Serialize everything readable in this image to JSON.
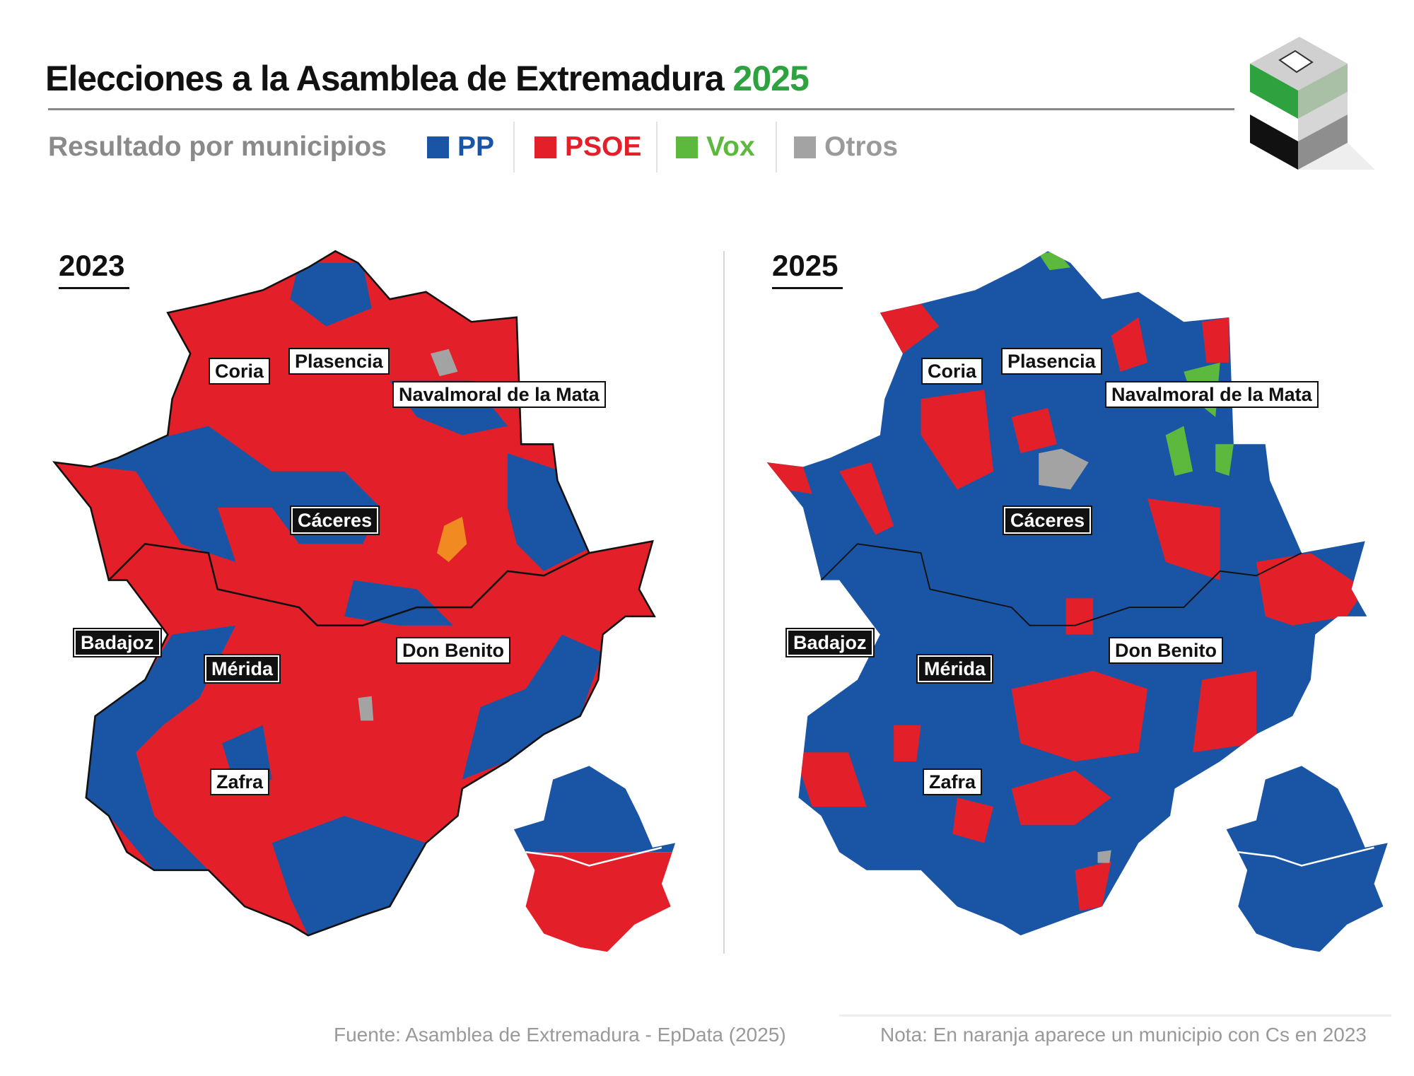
{
  "header": {
    "title": "Elecciones a la Asamblea de Extremadura",
    "title_year": "2025",
    "subtitle": "Resultado por municipios"
  },
  "legend": [
    {
      "label": "PP",
      "color": "#1a55a5"
    },
    {
      "label": "PSOE",
      "color": "#e3202a"
    },
    {
      "label": "Vox",
      "color": "#5db93e"
    },
    {
      "label": "Otros",
      "color": "#a3a3a3"
    }
  ],
  "colors": {
    "cs": "#f28a22",
    "title_accent": "#2ea23f"
  },
  "panels": [
    {
      "year": "2023",
      "dominant": {
        "Cáceres province": "PSOE (mostly)",
        "Badajoz province": "PSOE (mostly)"
      },
      "inset": {
        "north": "PP",
        "south": "PSOE"
      },
      "labels": [
        "Coria",
        "Plasencia",
        "Navalmoral de la Mata",
        "Cáceres",
        "Badajoz",
        "Mérida",
        "Don Benito",
        "Zafra"
      ]
    },
    {
      "year": "2025",
      "dominant": {
        "Cáceres province": "PP",
        "Badajoz province": "PP"
      },
      "inset": {
        "north": "PP",
        "south": "PP"
      },
      "labels": [
        "Coria",
        "Plasencia",
        "Navalmoral de la Mata",
        "Cáceres",
        "Badajoz",
        "Mérida",
        "Don Benito",
        "Zafra"
      ]
    }
  ],
  "footer": {
    "source": "Fuente: Asamblea de Extremadura - EpData (2025)",
    "note": "Nota: En naranja aparece un municipio con Cs en 2023"
  },
  "logo": "ballot-box-extremadura-flag"
}
